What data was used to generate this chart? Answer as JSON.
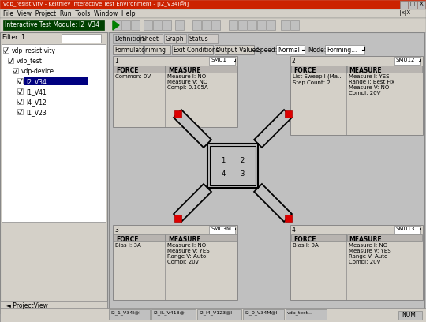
{
  "title_bar": "vdp_resistivity - Keithley Interactive Test Environment - [I2_V34I@I]",
  "title_bar_color": "#cc2200",
  "menu_bar": "File  View  Project  Run  Tools  Window  Help",
  "toolbar_label": "Interactive Test Module: I2_V34",
  "bg_color": "#c0c0c0",
  "tab_labels": [
    "Definition",
    "Sheet",
    "Graph",
    "Status"
  ],
  "button_labels": [
    "Formulator",
    "Timing",
    "Exit Conditions",
    "Output Values"
  ],
  "speed_value": "Normal",
  "smut_values": [
    "SMU1",
    "SMU12",
    "SMU3M",
    "SMU13"
  ],
  "smu1_force": "Common: 0V",
  "smu1_measure": "Measure I: NO\nMeasure V: NO\nCompl: 0.105A",
  "smu2_force": "List Sweep I (Ma...\nStep Count: 2",
  "smu2_measure": "Measure I: YES\nRange I: Best Fix\nMeasure V: NO\nCompl: 20V",
  "smu3m_force": "Bias I: 3A",
  "smu3m_measure": "Measure I: NO\nMeasure V: YES\nRange V: Auto\nCompl: 20v",
  "smu3_force": "Bias I: 0A",
  "smu3_measure": "Measure I: NO\nMeasure V: YES\nRange V: Auto\nCompl: 20V",
  "tree_items": [
    "vdp_resistivity",
    "vdp_test",
    "vdp-device",
    "I2_V34",
    "I1_V41",
    "I4_V12",
    "I1_V23"
  ],
  "tree_indent": [
    0,
    6,
    12,
    18,
    18,
    18,
    18
  ],
  "tree_selected": 3,
  "bottom_tabs": [
    "I2_1_V34I@I",
    "I2_IL_V413@I",
    "I2_I4_V123@I",
    "I2_0_V34M@I",
    "vdp_test..."
  ],
  "red_color": "#dd0000",
  "gray_bg": "#c0c0c0",
  "panel_bg": "#d0ccc8",
  "white": "#ffffff",
  "black": "#000000",
  "dark_blue": "#000080",
  "border": "#888888"
}
